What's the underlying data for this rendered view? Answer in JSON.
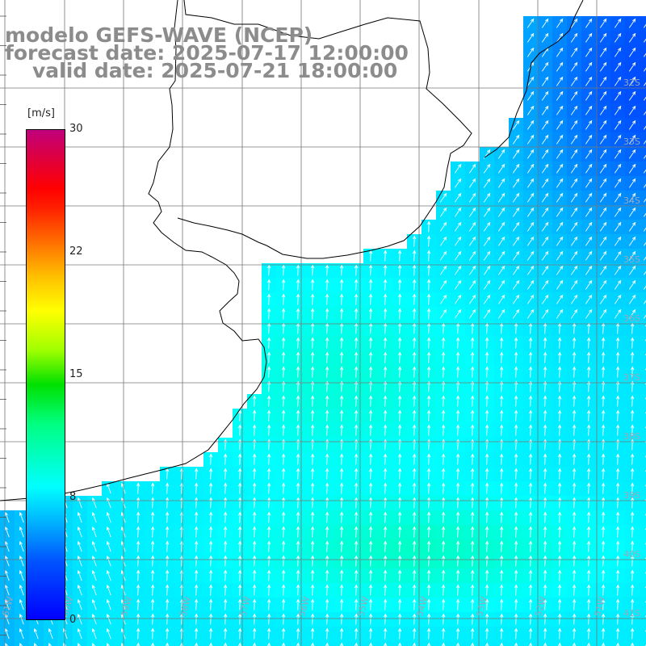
{
  "title": {
    "line1": "modelo GEFS-WAVE (NCEP)",
    "line2": "forecast date: 2025-07-17 12:00:00",
    "line3": "valid date: 2025-07-21 18:00:00"
  },
  "colorbar": {
    "units": "[m/s]",
    "ticks": [
      {
        "label": "30",
        "value": 30
      },
      {
        "label": "22",
        "value": 22
      },
      {
        "label": "15",
        "value": 15
      },
      {
        "label": "8",
        "value": 8
      },
      {
        "label": "0",
        "value": 0
      }
    ],
    "min": 0,
    "max": 30
  },
  "grid": {
    "lat_labels": [
      "32S",
      "33S",
      "34S",
      "35S",
      "36S",
      "37S",
      "38S",
      "39S",
      "40S",
      "41S"
    ],
    "lon_labels": [
      "61W",
      "60W",
      "59W",
      "58W",
      "57W",
      "56W",
      "55W",
      "54W",
      "53W",
      "52W",
      "51W"
    ]
  },
  "colors": {
    "land": "#ffffff",
    "coast": "#000000",
    "grid": "#777777",
    "title": "#8c8c8c",
    "arrows": "#ffffff"
  },
  "wind_field": {
    "description_values": "wind speed in m/s over ocean, mostly 6-12 m/s",
    "dominant_direction": "from south (arrows pointing north)"
  }
}
